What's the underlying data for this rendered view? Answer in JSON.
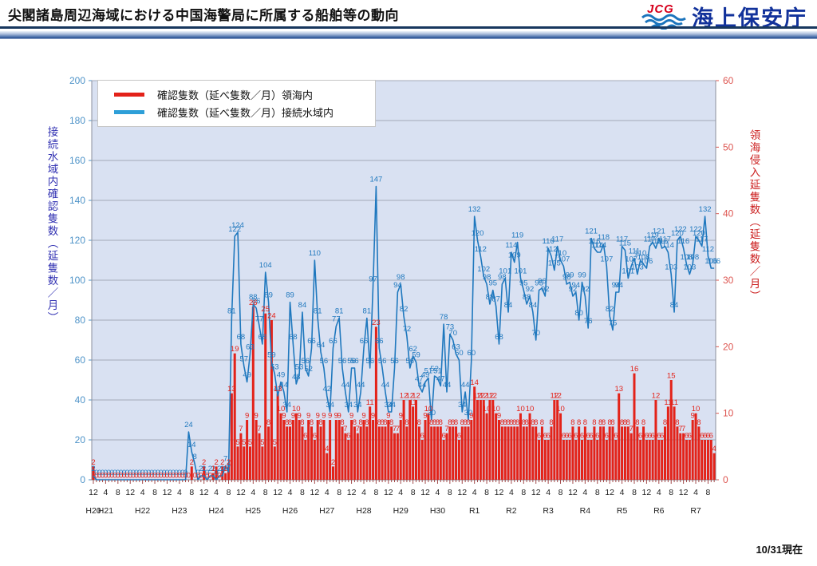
{
  "header": {
    "title": "尖閣諸島周辺海域における中国海警局に所属する船舶等の動向",
    "logo_text": "JCG",
    "agency": "海上保安庁"
  },
  "footer": {
    "as_of": "10/31現在"
  },
  "legend": {
    "items": [
      {
        "label": "確認隻数（延べ隻数／月）領海内",
        "color": "#e32219"
      },
      {
        "label": "確認隻数（延べ隻数／月）接続水域内",
        "color": "#2e9fd8"
      }
    ]
  },
  "chart_data": {
    "type": "line+bar combo, monthly time series",
    "start_month": "2008-12",
    "plot_bg": "#d9e1f2",
    "grid_color": "#a3a9b8",
    "left_axis": {
      "label": "接続水域内確認隻数（延隻数／月）",
      "min": 0,
      "max": 200,
      "step": 20,
      "tick_color": "#4e93c8"
    },
    "right_axis": {
      "label": "領海侵入延隻数（延隻数／月）",
      "min": 0,
      "max": 60,
      "step": 10,
      "tick_color": "#dd5550"
    },
    "x_tick_cycle": [
      "12",
      "4",
      "8"
    ],
    "eras": [
      {
        "label": "H20",
        "month_index": 0
      },
      {
        "label": "H21",
        "month_index": 4
      },
      {
        "label": "H22",
        "month_index": 16
      },
      {
        "label": "H23",
        "month_index": 28
      },
      {
        "label": "H24",
        "month_index": 40
      },
      {
        "label": "H25",
        "month_index": 52
      },
      {
        "label": "H26",
        "month_index": 64
      },
      {
        "label": "H27",
        "month_index": 76
      },
      {
        "label": "H28",
        "month_index": 88
      },
      {
        "label": "H29",
        "month_index": 100
      },
      {
        "label": "H30",
        "month_index": 112
      },
      {
        "label": "R1",
        "month_index": 124
      },
      {
        "label": "R2",
        "month_index": 136
      },
      {
        "label": "R3",
        "month_index": 148
      },
      {
        "label": "R4",
        "month_index": 160
      },
      {
        "label": "R5",
        "month_index": 172
      },
      {
        "label": "R6",
        "month_index": 184
      },
      {
        "label": "R7",
        "month_index": 196
      }
    ],
    "series": [
      {
        "name": "確認隻数（延べ隻数／月）領海内",
        "type": "bar",
        "axis": "right",
        "color": "#e32219",
        "values": [
          2,
          0,
          0,
          0,
          0,
          0,
          0,
          0,
          0,
          0,
          0,
          0,
          0,
          0,
          0,
          0,
          0,
          0,
          0,
          0,
          0,
          0,
          0,
          0,
          0,
          0,
          0,
          0,
          0,
          0,
          0,
          0,
          2,
          0,
          0,
          0,
          2,
          0,
          0,
          1,
          2,
          0,
          2,
          1,
          2,
          13,
          19,
          5,
          7,
          5,
          9,
          5,
          26,
          9,
          7,
          5,
          25,
          8,
          24,
          5,
          13,
          10,
          9,
          8,
          8,
          9,
          10,
          9,
          8,
          6,
          9,
          8,
          6,
          9,
          8,
          9,
          4,
          9,
          2,
          9,
          9,
          8,
          7,
          6,
          9,
          8,
          7,
          8,
          9,
          8,
          11,
          9,
          23,
          8,
          8,
          8,
          9,
          8,
          7,
          7,
          9,
          12,
          8,
          12,
          11,
          12,
          8,
          6,
          9,
          10,
          8,
          8,
          8,
          8,
          6,
          7,
          8,
          8,
          8,
          6,
          8,
          8,
          8,
          9,
          14,
          12,
          12,
          12,
          10,
          12,
          12,
          10,
          9,
          8,
          8,
          8,
          8,
          8,
          8,
          10,
          8,
          8,
          10,
          8,
          8,
          6,
          8,
          6,
          6,
          8,
          12,
          12,
          10,
          6,
          6,
          6,
          8,
          6,
          8,
          6,
          8,
          6,
          6,
          8,
          6,
          8,
          8,
          6,
          8,
          8,
          6,
          13,
          8,
          8,
          8,
          7,
          16,
          8,
          6,
          8,
          6,
          6,
          6,
          12,
          6,
          6,
          8,
          11,
          15,
          11,
          8,
          7,
          7,
          6,
          6,
          9,
          10,
          8,
          6,
          6,
          6,
          6,
          4
        ]
      },
      {
        "name": "確認隻数（延べ隻数／月）接続水域内",
        "type": "line",
        "axis": "left",
        "color": "#1f78be",
        "values": [
          2,
          0,
          0,
          0,
          0,
          0,
          0,
          0,
          0,
          0,
          0,
          0,
          0,
          0,
          0,
          0,
          0,
          0,
          0,
          0,
          0,
          0,
          0,
          0,
          0,
          0,
          0,
          0,
          0,
          0,
          0,
          24,
          14,
          8,
          0,
          2,
          2,
          0,
          2,
          2,
          0,
          2,
          2,
          7,
          4,
          81,
          122,
          124,
          68,
          57,
          49,
          63,
          88,
          86,
          77,
          68,
          104,
          89,
          59,
          53,
          42,
          49,
          44,
          34,
          89,
          68,
          48,
          53,
          84,
          56,
          52,
          66,
          110,
          81,
          64,
          56,
          42,
          34,
          66,
          77,
          81,
          56,
          44,
          34,
          56,
          56,
          34,
          44,
          66,
          81,
          56,
          97,
          147,
          66,
          56,
          44,
          34,
          34,
          56,
          94,
          98,
          82,
          72,
          56,
          62,
          59,
          47,
          44,
          49,
          51,
          30,
          52,
          51,
          47,
          78,
          44,
          73,
          70,
          63,
          60,
          34,
          44,
          30,
          60,
          132,
          120,
          112,
          102,
          98,
          88,
          95,
          87,
          68,
          98,
          101,
          84,
          114,
          109,
          119,
          101,
          95,
          88,
          92,
          84,
          70,
          95,
          96,
          92,
          116,
          112,
          105,
          117,
          110,
          107,
          98,
          99,
          92,
          94,
          80,
          99,
          92,
          76,
          121,
          116,
          114,
          114,
          118,
          107,
          82,
          75,
          94,
          94,
          117,
          115,
          101,
          107,
          111,
          103,
          110,
          108,
          106,
          117,
          119,
          116,
          121,
          116,
          117,
          114,
          103,
          84,
          120,
          122,
          116,
          108,
          103,
          108,
          122,
          120,
          117,
          132,
          112,
          106,
          106
        ]
      }
    ]
  }
}
